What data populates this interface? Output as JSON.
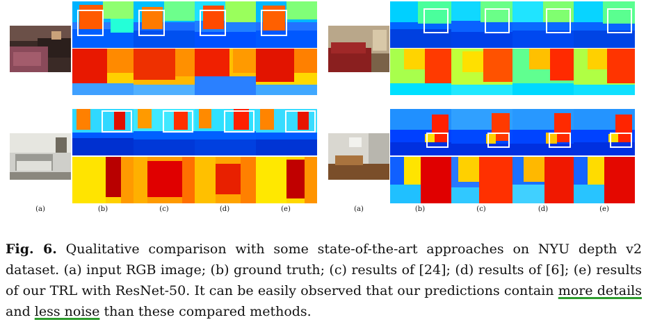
{
  "figure": {
    "subfigure_labels": [
      "(a)",
      "(b)",
      "(c)",
      "(d)",
      "(e)"
    ],
    "colormap": "jet"
  },
  "caption": {
    "title": "Fig. 6.",
    "text_part1": "Qualitative comparison with some state-of-the-art approaches on NYU depth v2 dataset. (a) input RGB image; (b) ground truth; (c) results of [24]; (d) results of [6]; (e) results of our TRL with ResNet-50. It can be easily observed that our predictions contain",
    "emph1": "more details",
    "text_part2": "and",
    "emph2": "less noise",
    "text_part3": "than these compared methods.",
    "underline_color": "#2e9c2e"
  }
}
